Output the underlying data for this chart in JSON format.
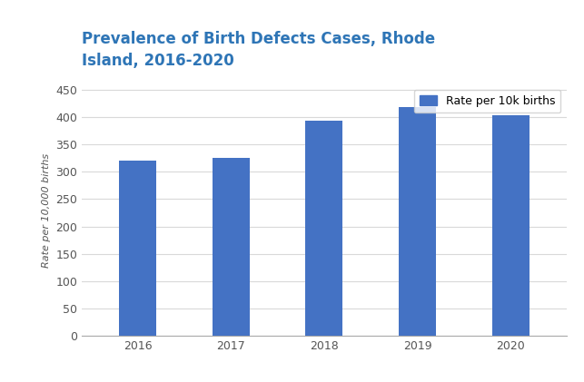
{
  "categories": [
    "2016",
    "2017",
    "2018",
    "2019",
    "2020"
  ],
  "values": [
    320,
    325,
    393,
    418,
    403
  ],
  "bar_color": "#4472C4",
  "title": "Prevalence of Birth Defects Cases, Rhode\nIsland, 2016-2020",
  "ylabel": "Rate per 10,000 births",
  "xlabel": "",
  "ylim": [
    0,
    460
  ],
  "yticks": [
    0,
    50,
    100,
    150,
    200,
    250,
    300,
    350,
    400,
    450
  ],
  "legend_label": "Rate per 10k births",
  "background_color": "#ffffff",
  "grid_color": "#d9d9d9",
  "title_color": "#2E75B6",
  "title_fontsize": 12,
  "axis_fontsize": 9,
  "ylabel_fontsize": 8,
  "bar_width": 0.4
}
